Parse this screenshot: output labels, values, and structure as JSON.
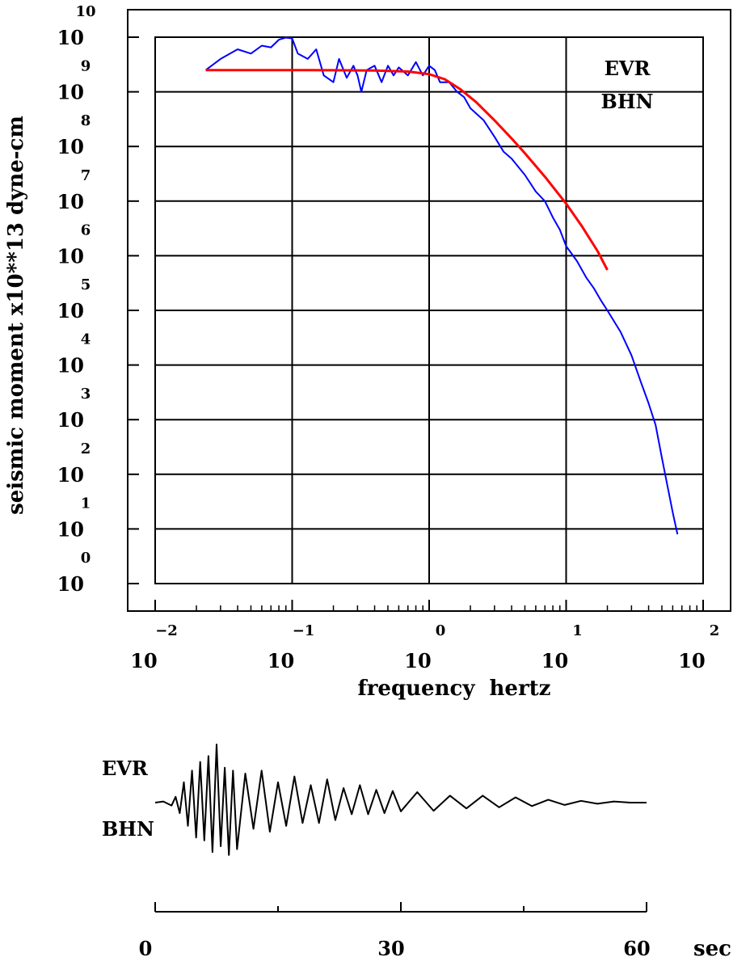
{
  "chart_data": [
    {
      "type": "line",
      "title": "",
      "xlabel": "frequency  hertz",
      "ylabel": "seismic moment x10**13 dyne-cm",
      "x_scale": "log",
      "y_scale": "log",
      "xlim": [
        0.01,
        100
      ],
      "ylim": [
        1,
        10000000000
      ],
      "grid": true,
      "annotations": [
        "EVR",
        "BHN"
      ],
      "x_ticks": [
        {
          "value": 0.01,
          "base": "10",
          "exp": "−2"
        },
        {
          "value": 0.1,
          "base": "10",
          "exp": "−1"
        },
        {
          "value": 1,
          "base": "10",
          "exp": "0"
        },
        {
          "value": 10,
          "base": "10",
          "exp": "1"
        },
        {
          "value": 100,
          "base": "10",
          "exp": "2"
        }
      ],
      "y_ticks": [
        {
          "value": 1,
          "base": "10",
          "exp": "0"
        },
        {
          "value": 10,
          "base": "10",
          "exp": "1"
        },
        {
          "value": 100,
          "base": "10",
          "exp": "2"
        },
        {
          "value": 1000,
          "base": "10",
          "exp": "3"
        },
        {
          "value": 10000,
          "base": "10",
          "exp": "4"
        },
        {
          "value": 100000,
          "base": "10",
          "exp": "5"
        },
        {
          "value": 1000000,
          "base": "10",
          "exp": "6"
        },
        {
          "value": 10000000,
          "base": "10",
          "exp": "7"
        },
        {
          "value": 100000000,
          "base": "10",
          "exp": "8"
        },
        {
          "value": 1000000000,
          "base": "10",
          "exp": "9"
        },
        {
          "value": 10000000000,
          "base": "10",
          "exp": "10"
        }
      ],
      "series": [
        {
          "color": "#0000ff",
          "x": [
            0.0234,
            0.03,
            0.04,
            0.05,
            0.06,
            0.07,
            0.08,
            0.09,
            0.1,
            0.11,
            0.13,
            0.15,
            0.17,
            0.2,
            0.22,
            0.25,
            0.28,
            0.3,
            0.32,
            0.35,
            0.4,
            0.45,
            0.5,
            0.55,
            0.6,
            0.7,
            0.8,
            0.9,
            1.0,
            1.1,
            1.2,
            1.4,
            1.6,
            1.8,
            2.0,
            2.5,
            3.0,
            3.5,
            4.0,
            5.0,
            6.0,
            7.0,
            8.0,
            9.0,
            10,
            12,
            14,
            16,
            18,
            20,
            25,
            30,
            35,
            40,
            45,
            50,
            55,
            60,
            65
          ],
          "y": [
            2500000000,
            4000000000,
            6000000000,
            5000000000,
            7000000000,
            6500000000,
            9000000000,
            9800000000,
            9500000000,
            5000000000,
            4000000000,
            6000000000,
            2000000000,
            1500000000,
            4000000000,
            1800000000,
            3000000000,
            2000000000,
            1000000000,
            2500000000,
            3000000000,
            1500000000,
            3000000000,
            2000000000,
            2800000000,
            2000000000,
            3500000000,
            2000000000,
            3000000000,
            2500000000,
            1500000000,
            1500000000,
            1000000000,
            800000000,
            500000000,
            300000000,
            150000000,
            80000000,
            60000000,
            30000000,
            15000000,
            10000000,
            5000000,
            3000000,
            1500000,
            800000,
            400000,
            250000,
            150000,
            100000,
            40000,
            15000,
            5000,
            2000,
            800,
            200,
            60,
            20,
            8
          ]
        },
        {
          "color": "#ff0000",
          "x": [
            0.0234,
            0.05,
            0.1,
            0.2,
            0.4,
            0.7,
            1.0,
            1.3,
            1.7,
            2.2,
            3.0,
            4.0,
            5.0,
            7.0,
            10,
            13,
            17,
            20
          ],
          "y": [
            2500000000,
            2500000000,
            2500000000,
            2480000000,
            2450000000,
            2350000000,
            2100000000,
            1700000000,
            1100000000,
            650000000,
            300000000,
            140000000,
            75000000,
            28000000,
            9000000,
            3500000,
            1200000,
            550000
          ]
        }
      ]
    },
    {
      "type": "line",
      "title": "",
      "xlabel": "sec",
      "ylabel": "",
      "xlim": [
        0,
        60
      ],
      "annotations": [
        "EVR",
        "BHN"
      ],
      "x_ticks": [
        "0",
        "30",
        "60"
      ],
      "series": [
        {
          "color": "#000000",
          "x": [
            0,
            1,
            2,
            2.5,
            3,
            3.5,
            4,
            4.5,
            5,
            5.5,
            6,
            6.5,
            7,
            7.5,
            8,
            8.5,
            9,
            9.5,
            10,
            11,
            12,
            13,
            14,
            15,
            16,
            17,
            18,
            19,
            20,
            21,
            22,
            23,
            24,
            25,
            26,
            27,
            28,
            29,
            30,
            32,
            34,
            36,
            38,
            40,
            42,
            44,
            46,
            48,
            50,
            52,
            54,
            56,
            58,
            60
          ],
          "y": [
            0,
            0.02,
            -0.05,
            0.1,
            -0.18,
            0.35,
            -0.4,
            0.55,
            -0.6,
            0.7,
            -0.65,
            0.8,
            -0.85,
            1.0,
            -0.75,
            0.6,
            -0.9,
            0.55,
            -0.8,
            0.5,
            -0.45,
            0.55,
            -0.5,
            0.35,
            -0.4,
            0.45,
            -0.35,
            0.3,
            -0.35,
            0.4,
            -0.3,
            0.25,
            -0.2,
            0.3,
            -0.2,
            0.22,
            -0.18,
            0.2,
            -0.15,
            0.18,
            -0.14,
            0.12,
            -0.1,
            0.12,
            -0.08,
            0.09,
            -0.06,
            0.05,
            -0.04,
            0.03,
            -0.02,
            0.02,
            0,
            0
          ]
        }
      ]
    }
  ]
}
